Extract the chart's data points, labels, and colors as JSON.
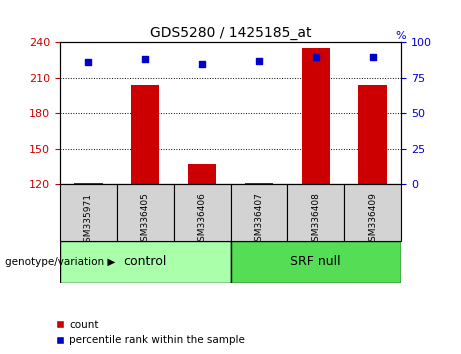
{
  "title": "GDS5280 / 1425185_at",
  "samples": [
    "GSM335971",
    "GSM336405",
    "GSM336406",
    "GSM336407",
    "GSM336408",
    "GSM336409"
  ],
  "bar_values": [
    121,
    204,
    137,
    121,
    235,
    204
  ],
  "percentile_values": [
    86,
    88,
    85,
    87,
    90,
    90
  ],
  "ylim_left": [
    120,
    240
  ],
  "ylim_right": [
    0,
    100
  ],
  "yticks_left": [
    120,
    150,
    180,
    210,
    240
  ],
  "yticks_right": [
    0,
    25,
    50,
    75,
    100
  ],
  "bar_color": "#cc0000",
  "point_color": "#0000cc",
  "bar_width": 0.5,
  "control_color": "#aaffaa",
  "srfnull_color": "#55dd55",
  "sample_box_color": "#d3d3d3",
  "group_label": "genotype/variation",
  "legend_count_label": "count",
  "legend_percentile_label": "percentile rank within the sample",
  "tick_label_color_left": "#cc0000",
  "tick_label_color_right": "#0000cc",
  "grid_linestyle": "dotted",
  "grid_color": "#000000"
}
